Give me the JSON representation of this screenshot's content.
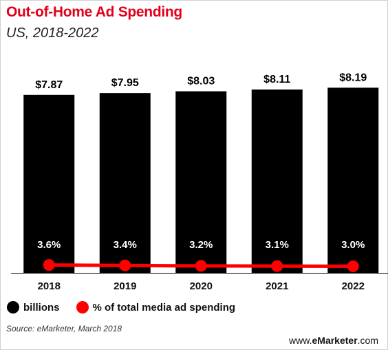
{
  "title": "Out-of-Home Ad Spending",
  "subtitle": "US, 2018-2022",
  "source": "Source: eMarketer, March 2018",
  "brand": {
    "prefix": "www.",
    "strong": "eMarketer",
    "suffix": ".com"
  },
  "legend": [
    {
      "label": "billions",
      "color": "#000000"
    },
    {
      "label": "% of total media ad spending",
      "color": "#ff0000"
    }
  ],
  "chart_data": {
    "type": "bar",
    "categories": [
      "2018",
      "2019",
      "2020",
      "2021",
      "2022"
    ],
    "series": [
      {
        "name": "billions",
        "values": [
          7.87,
          7.95,
          8.03,
          8.11,
          8.19
        ],
        "labels": [
          "$7.87",
          "$7.95",
          "$8.03",
          "$8.11",
          "$8.19"
        ],
        "color": "#000000"
      },
      {
        "name": "% of total media ad spending",
        "type": "line",
        "values": [
          3.6,
          3.4,
          3.2,
          3.1,
          3.0
        ],
        "labels": [
          "3.6%",
          "3.4%",
          "3.2%",
          "3.1%",
          "3.0%"
        ],
        "color": "#ff0000"
      }
    ],
    "ylim": [
      0,
      9.6
    ],
    "y2lim": [
      0,
      100
    ],
    "grid": false,
    "legend_position": "bottom-left"
  }
}
